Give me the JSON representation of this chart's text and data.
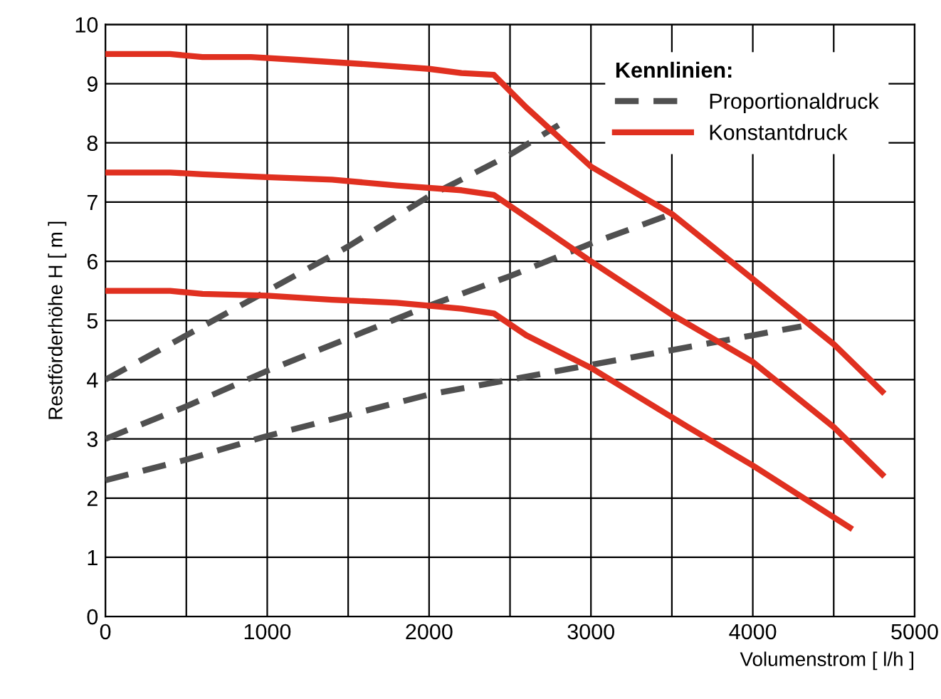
{
  "chart_data": {
    "type": "line",
    "xlabel": "Volumenstrom [ l/h ]",
    "ylabel": "Restförderhöhe H [ m ]",
    "legend_title": "Kennlinien:",
    "legend": "top right",
    "grid": true,
    "line_style": "solid",
    "marker": "none",
    "xlim": [
      0,
      5000
    ],
    "ylim": [
      0,
      10
    ],
    "xticks": [
      0,
      {
        "value": 500,
        "label": null
      },
      1000,
      {
        "value": 1500,
        "label": null
      },
      2000,
      {
        "value": 2500,
        "label": null
      },
      3000,
      {
        "value": 3500,
        "label": null
      },
      4000,
      {
        "value": 4500,
        "label": null
      },
      5000
    ],
    "yticks": [
      0,
      1,
      2,
      3,
      4,
      5,
      6,
      7,
      8,
      9,
      10
    ],
    "series": [
      {
        "name": "Proportionaldruck",
        "color": "#505050",
        "line_style": "dashed",
        "x": [
          0,
          500,
          1000,
          1500,
          2000,
          2500,
          2800
        ],
        "values": [
          4.0,
          4.75,
          5.5,
          6.25,
          7.1,
          7.8,
          8.3
        ]
      },
      {
        "color": "#505050",
        "line_style": "dashed",
        "x": [
          0,
          500,
          1000,
          1500,
          2000,
          2500,
          3000,
          3500
        ],
        "values": [
          3.0,
          3.55,
          4.15,
          4.7,
          5.25,
          5.75,
          6.3,
          6.8
        ]
      },
      {
        "color": "#505050",
        "line_style": "dashed",
        "x": [
          0,
          500,
          1000,
          1500,
          2000,
          2500,
          3000,
          3500,
          4000,
          4300
        ],
        "values": [
          2.3,
          2.65,
          3.05,
          3.4,
          3.75,
          4.0,
          4.25,
          4.5,
          4.75,
          4.9
        ]
      },
      {
        "name": "Konstantdruck",
        "color": "#e03020",
        "x": [
          0,
          400,
          600,
          900,
          1200,
          1600,
          2000,
          2200,
          2400,
          2600,
          3000,
          3500,
          4000,
          4500,
          4800
        ],
        "values": [
          9.5,
          9.5,
          9.45,
          9.45,
          9.4,
          9.33,
          9.25,
          9.18,
          9.15,
          8.6,
          7.6,
          6.8,
          5.7,
          4.6,
          3.8
        ]
      },
      {
        "color": "#e03020",
        "x": [
          0,
          400,
          600,
          1000,
          1400,
          1800,
          2200,
          2400,
          2600,
          3000,
          3500,
          4000,
          4500,
          4800
        ],
        "values": [
          7.5,
          7.5,
          7.47,
          7.42,
          7.38,
          7.28,
          7.2,
          7.12,
          6.75,
          6.0,
          5.1,
          4.3,
          3.2,
          2.4
        ]
      },
      {
        "color": "#e03020",
        "x": [
          0,
          400,
          600,
          1000,
          1400,
          1800,
          2200,
          2400,
          2600,
          3000,
          3600,
          4000,
          4600
        ],
        "values": [
          5.5,
          5.5,
          5.45,
          5.42,
          5.35,
          5.3,
          5.2,
          5.12,
          4.75,
          4.2,
          3.2,
          2.55,
          1.5
        ]
      }
    ]
  }
}
